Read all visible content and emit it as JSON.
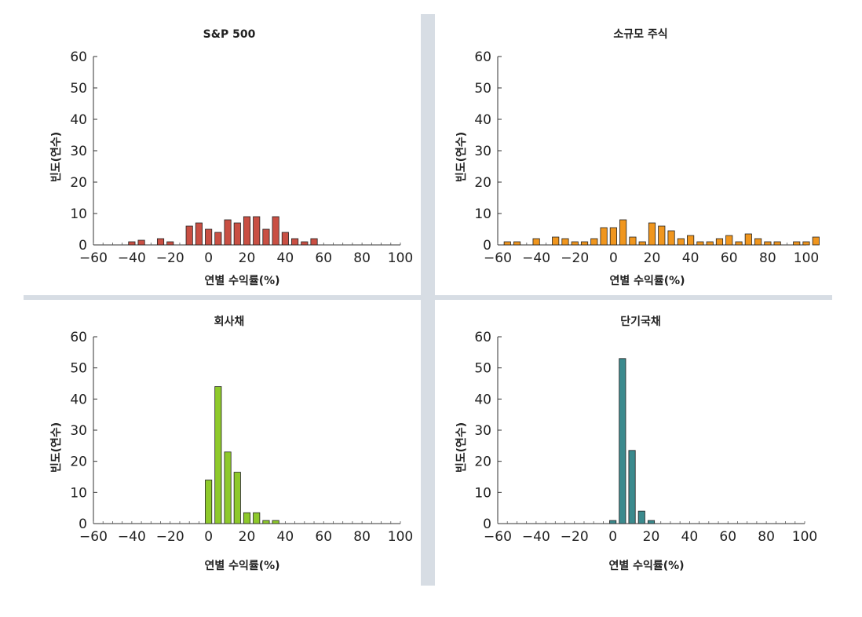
{
  "chart_data": [
    {
      "type": "bar",
      "title": "S&P 500",
      "xlabel": "연별 수익률(%)",
      "ylabel": "빈도(연수)",
      "xlim": [
        -60,
        100
      ],
      "ylim": [
        0,
        60
      ],
      "xticks": [
        "−60",
        "−40",
        "−20",
        "0",
        "20",
        "40",
        "60",
        "80",
        "100"
      ],
      "yticks": [
        "0",
        "10",
        "20",
        "30",
        "40",
        "50",
        "60"
      ],
      "color": "#c94f43",
      "bin_width": 5,
      "x": [
        -40,
        -35,
        -25,
        -20,
        -10,
        -5,
        0,
        5,
        10,
        15,
        20,
        25,
        30,
        35,
        40,
        45,
        50,
        55
      ],
      "values": [
        1,
        1.5,
        2,
        1,
        6,
        7,
        5,
        4,
        8,
        7,
        9,
        9,
        5,
        9,
        4,
        2,
        1,
        2
      ]
    },
    {
      "type": "bar",
      "title": "소규모 주식",
      "xlabel": "연별 수익률(%)",
      "ylabel": "빈도(연수)",
      "xlim": [
        -60,
        100
      ],
      "ylim": [
        0,
        60
      ],
      "xticks": [
        "−60",
        "−40",
        "−20",
        "0",
        "20",
        "40",
        "60",
        "80",
        "100"
      ],
      "yticks": [
        "0",
        "10",
        "20",
        "30",
        "40",
        "50",
        "60"
      ],
      "color": "#f0961e",
      "bin_width": 5,
      "x": [
        -55,
        -50,
        -40,
        -30,
        -25,
        -20,
        -15,
        -10,
        -5,
        0,
        5,
        10,
        15,
        20,
        25,
        30,
        35,
        40,
        45,
        50,
        55,
        60,
        65,
        70,
        75,
        80,
        85,
        95,
        100,
        105
      ],
      "values": [
        1,
        1,
        2,
        2.5,
        2,
        1,
        1,
        2,
        5.5,
        5.5,
        8,
        2.5,
        1,
        7,
        6,
        4.5,
        2,
        3,
        1,
        1,
        2,
        3,
        1,
        3.5,
        2,
        1,
        1,
        1,
        1,
        2.5
      ]
    },
    {
      "type": "bar",
      "title": "회사채",
      "xlabel": "연별 수익률(%)",
      "ylabel": "빈도(연수)",
      "xlim": [
        -60,
        100
      ],
      "ylim": [
        0,
        60
      ],
      "xticks": [
        "−60",
        "−40",
        "−20",
        "0",
        "20",
        "40",
        "60",
        "80",
        "100"
      ],
      "yticks": [
        "0",
        "10",
        "20",
        "30",
        "40",
        "50",
        "60"
      ],
      "color": "#8ec92b",
      "bin_width": 5,
      "x": [
        0,
        5,
        10,
        15,
        20,
        25,
        30,
        35
      ],
      "values": [
        14,
        44,
        23,
        16.5,
        3.5,
        3.5,
        1,
        1
      ]
    },
    {
      "type": "bar",
      "title": "단기국채",
      "xlabel": "연별 수익률(%)",
      "ylabel": "빈도(연수)",
      "xlim": [
        -60,
        100
      ],
      "ylim": [
        0,
        60
      ],
      "xticks": [
        "−60",
        "−40",
        "−20",
        "0",
        "20",
        "40",
        "60",
        "80",
        "100"
      ],
      "yticks": [
        "0",
        "10",
        "20",
        "30",
        "40",
        "50",
        "60"
      ],
      "color": "#3b8a8d",
      "bin_width": 5,
      "x": [
        0,
        5,
        10,
        15,
        20
      ],
      "values": [
        1,
        53,
        23.5,
        4,
        1
      ]
    }
  ]
}
